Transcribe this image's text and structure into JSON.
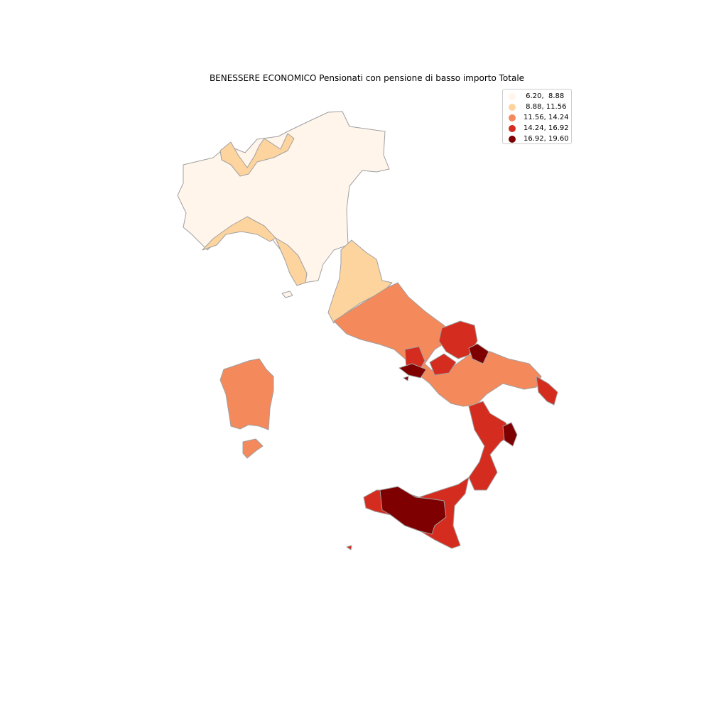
{
  "title": "BENESSERE ECONOMICO Pensionati con pensione di basso importo Totale",
  "legend": [
    {
      "label": " 6.20,  8.88",
      "color": "#fff5eb"
    },
    {
      "label": " 8.88, 11.56",
      "color": "#fdd49e"
    },
    {
      "label": "11.56, 14.24",
      "color": "#f4895c"
    },
    {
      "label": "14.24, 16.92",
      "color": "#d42c1e"
    },
    {
      "label": "16.92, 19.60",
      "color": "#7f0000"
    }
  ],
  "border_color": "#a0a0a0"
}
